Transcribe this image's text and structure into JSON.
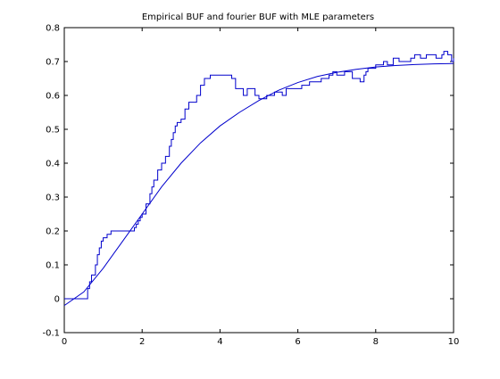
{
  "chart_data": {
    "type": "line",
    "title": "Empirical BUF and fourier BUF with MLE parameters",
    "xlabel": "",
    "ylabel": "",
    "xlim": [
      0,
      10
    ],
    "ylim": [
      -0.1,
      0.8
    ],
    "xticks": [
      "0",
      "2",
      "4",
      "6",
      "8",
      "10"
    ],
    "yticks": [
      "-0.1",
      "0",
      "0.1",
      "0.2",
      "0.3",
      "0.4",
      "0.5",
      "0.6",
      "0.7",
      "0.8"
    ],
    "grid": false,
    "legend": "none",
    "series": [
      {
        "style": "step",
        "color": "#0000cc",
        "x": [
          0.0,
          0.6,
          0.65,
          0.7,
          0.75,
          0.8,
          0.85,
          0.9,
          0.95,
          1.0,
          1.1,
          1.2,
          1.8,
          1.85,
          1.9,
          1.95,
          2.0,
          2.1,
          2.2,
          2.25,
          2.3,
          2.4,
          2.5,
          2.6,
          2.7,
          2.75,
          2.8,
          2.85,
          2.9,
          2.95,
          3.0,
          3.1,
          3.2,
          3.4,
          3.5,
          3.6,
          3.7,
          3.75,
          3.8,
          4.3,
          4.4,
          4.6,
          4.7,
          4.9,
          5.0,
          5.2,
          5.4,
          5.6,
          5.7,
          6.0,
          6.1,
          6.3,
          6.6,
          6.8,
          6.9,
          7.0,
          7.2,
          7.4,
          7.6,
          7.7,
          7.75,
          7.8,
          8.0,
          8.2,
          8.3,
          8.45,
          8.6,
          8.8,
          8.9,
          9.0,
          9.05,
          9.15,
          9.3,
          9.45,
          9.55,
          9.7,
          9.75,
          9.85,
          9.95,
          10.0
        ],
        "y": [
          0.0,
          0.03,
          0.05,
          0.07,
          0.07,
          0.1,
          0.13,
          0.15,
          0.17,
          0.18,
          0.19,
          0.2,
          0.21,
          0.22,
          0.23,
          0.24,
          0.25,
          0.28,
          0.31,
          0.33,
          0.35,
          0.38,
          0.4,
          0.42,
          0.45,
          0.47,
          0.49,
          0.51,
          0.52,
          0.52,
          0.53,
          0.56,
          0.58,
          0.6,
          0.63,
          0.65,
          0.65,
          0.66,
          0.66,
          0.65,
          0.62,
          0.6,
          0.62,
          0.6,
          0.59,
          0.6,
          0.61,
          0.6,
          0.62,
          0.62,
          0.63,
          0.64,
          0.65,
          0.66,
          0.67,
          0.66,
          0.67,
          0.65,
          0.64,
          0.66,
          0.67,
          0.68,
          0.69,
          0.7,
          0.69,
          0.71,
          0.7,
          0.7,
          0.71,
          0.72,
          0.72,
          0.71,
          0.72,
          0.72,
          0.71,
          0.72,
          0.73,
          0.72,
          0.7,
          0.71
        ]
      },
      {
        "style": "line",
        "color": "#0000cc",
        "x": [
          0.0,
          0.5,
          1.0,
          1.5,
          2.0,
          2.5,
          3.0,
          3.5,
          4.0,
          4.5,
          5.0,
          5.5,
          6.0,
          6.5,
          7.0,
          7.5,
          8.0,
          8.5,
          9.0,
          9.5,
          10.0
        ],
        "y": [
          -0.02,
          0.02,
          0.09,
          0.17,
          0.25,
          0.33,
          0.4,
          0.46,
          0.51,
          0.55,
          0.585,
          0.615,
          0.638,
          0.656,
          0.668,
          0.677,
          0.684,
          0.688,
          0.691,
          0.693,
          0.694
        ]
      }
    ]
  }
}
